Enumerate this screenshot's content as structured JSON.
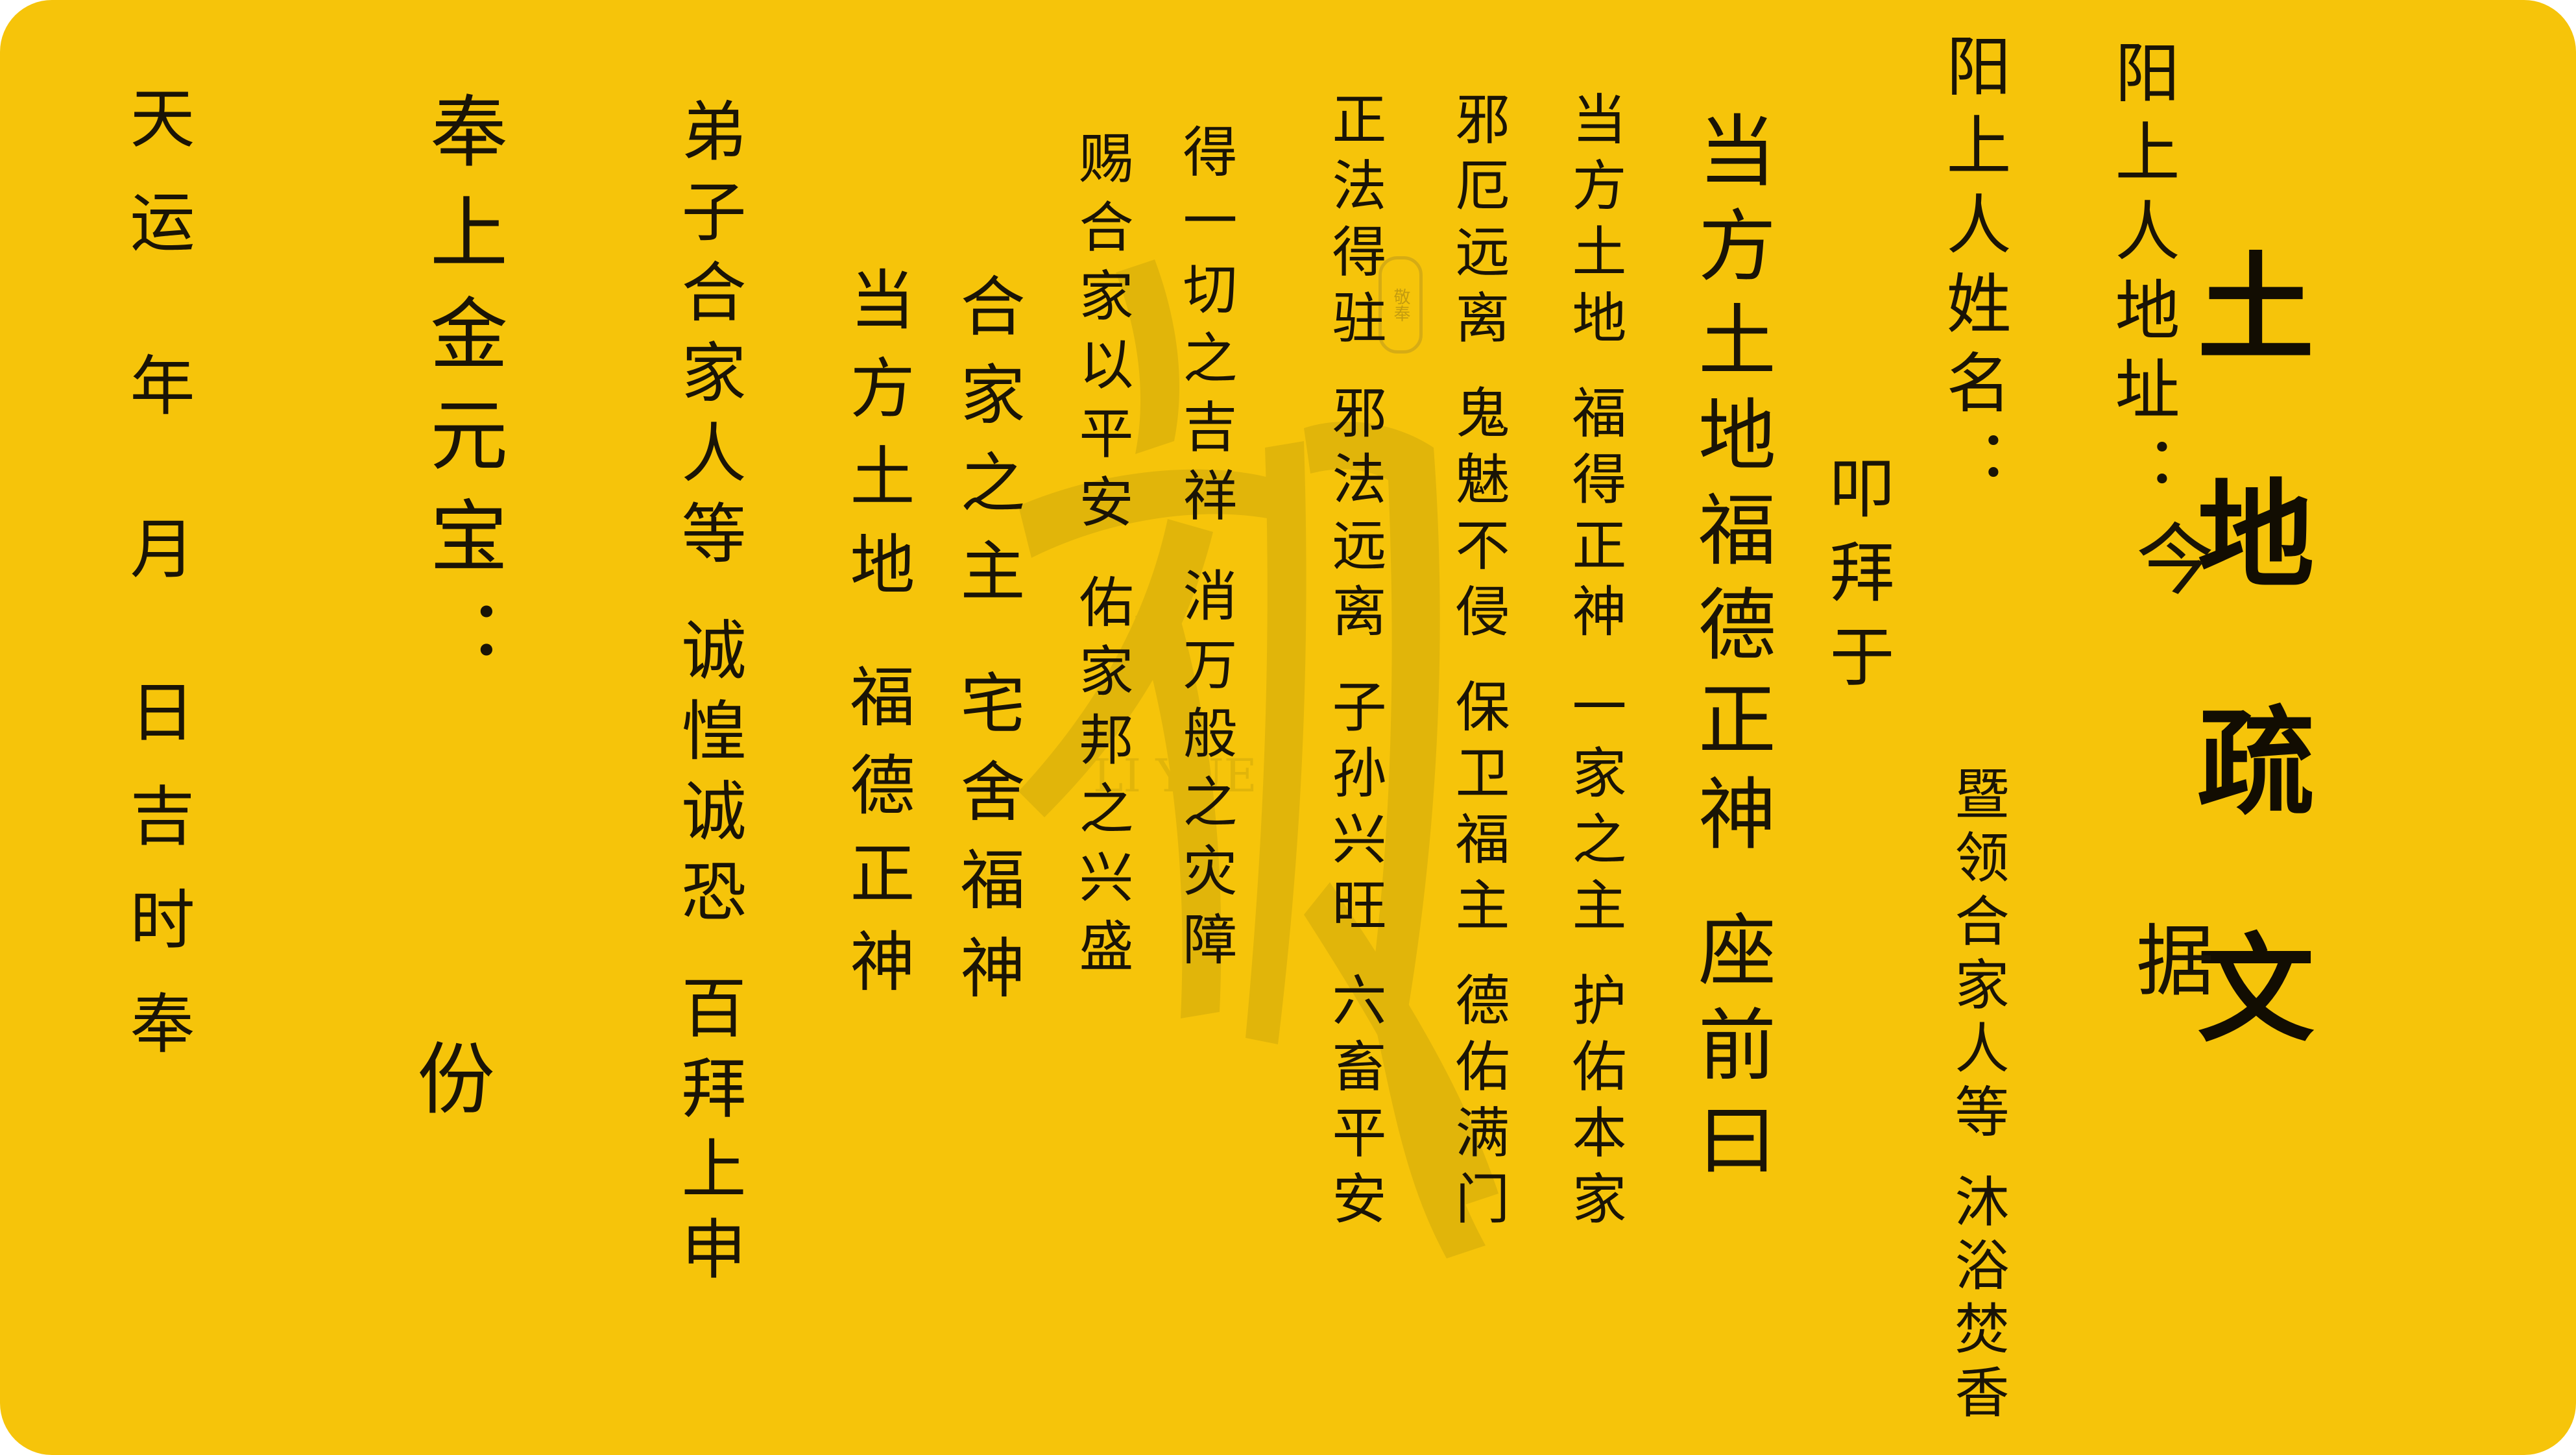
{
  "document": {
    "title": "土地疏文",
    "jin_ju": "今 据",
    "address_line": "阳上人地址：",
    "name_line": "阳上人姓名：",
    "family_line": "暨领合家人等 沐浴焚香",
    "kou_bai": "叩拜于",
    "deity_main": "当方土地福德正神 座前曰",
    "text_col_1": "当方土地 福得正神 一家之主 护佑本家",
    "text_col_2": "邪厄远离 鬼魅不侵 保卫福主 德佑满门",
    "text_col_3": "正法得驻 邪法远离 子孙兴旺 六畜平安",
    "text_col_4": "得一切之吉祥 消万般之灾障",
    "text_col_5": "赐合家以平安 佑家邦之兴盛",
    "text_col_6": "合家之主 宅舍福神",
    "text_col_7": "当方土地 福德正神",
    "text_col_8": "弟子合家人等 诚惶诚恐 百拜上申",
    "offering": "奉上金元宝：",
    "fen": "份",
    "date_line": "天运 年 月 日吉时奉",
    "watermark_char": "礼",
    "watermark_latin": "LI YUE",
    "seal_text": "敬奉"
  },
  "colors": {
    "background": "#f6c40a",
    "ink": "#1a1406",
    "watermark": "#b8980c"
  }
}
